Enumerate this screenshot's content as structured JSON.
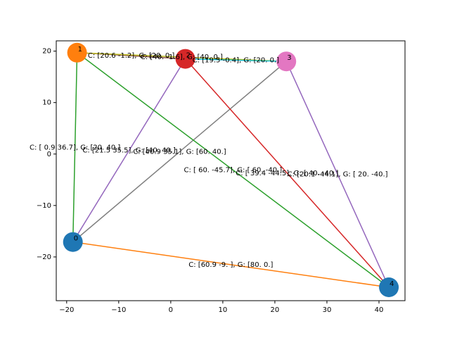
{
  "chart_data": {
    "type": "scatter",
    "title": "",
    "xlabel": "",
    "ylabel": "",
    "xlim": [
      -22,
      45
    ],
    "ylim": [
      -28.5,
      22
    ],
    "grid": false,
    "x_ticks": [
      -20,
      -10,
      0,
      10,
      20,
      30,
      40
    ],
    "y_ticks": [
      -20,
      -10,
      0,
      10,
      20
    ],
    "nodes": [
      {
        "id": "0",
        "x": -18.8,
        "y": -17.1,
        "color": "#1f77b4"
      },
      {
        "id": "1",
        "x": -18.0,
        "y": 19.7,
        "color": "#ff7f0e"
      },
      {
        "id": "2",
        "x": 2.8,
        "y": 18.5,
        "color": "#d62728"
      },
      {
        "id": "3",
        "x": 22.2,
        "y": 18.0,
        "color": "#e377c2"
      },
      {
        "id": "4",
        "x": 41.9,
        "y": -25.9,
        "color": "#1f77b4"
      }
    ],
    "edges": [
      {
        "from": "0",
        "to": "1",
        "color": "#2ca02c",
        "label": "C: [ 0.9 36.7], G: [20. 40.]"
      },
      {
        "from": "0",
        "to": "2",
        "color": "#9467bd",
        "label": "C: [21.5 35.5], G: [40. 40.]"
      },
      {
        "from": "0",
        "to": "3",
        "color": "#7f7f7f",
        "label": "C: [40.9 35.1], G: [60. 40.]"
      },
      {
        "from": "0",
        "to": "4",
        "color": "#ff7f0e",
        "label": "C: [60.9 -9. ], G: [80.  0.]"
      },
      {
        "from": "1",
        "to": "2",
        "color": "#8c564b",
        "label": "C: [20.6 -1.2], G: [20.  0.]"
      },
      {
        "from": "1",
        "to": "3",
        "color": "#bcbd22",
        "label": "C: [40. -1.6], G: [40.  0.]"
      },
      {
        "from": "1",
        "to": "4",
        "color": "#2ca02c",
        "label": "C: [ 60.  -45.7], G: [ 60. -40.]"
      },
      {
        "from": "2",
        "to": "3",
        "color": "#17becf",
        "label": "C: [19.5 -0.4], G: [20.  0.]"
      },
      {
        "from": "2",
        "to": "4",
        "color": "#d62728",
        "label": "C: [ 39.4 -44.5], G: [ 40. -40.]"
      },
      {
        "from": "3",
        "to": "4",
        "color": "#9467bd",
        "label": "C: [20.1 -44.1], G: [ 20. -40.]"
      }
    ]
  }
}
